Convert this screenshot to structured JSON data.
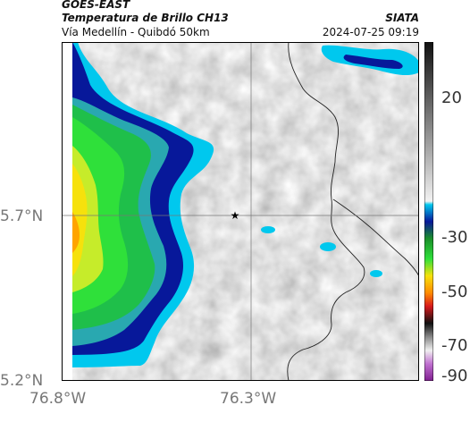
{
  "header": {
    "satellite": "GOES-EAST",
    "product": "Temperatura de Brillo CH13",
    "region": "Vía Medellín - Quibdó 50km",
    "source": "SIATA",
    "datetime": "2024-07-25 09:19"
  },
  "map": {
    "lat_labels": [
      "5.7°N",
      "5.2°N"
    ],
    "lon_labels": [
      "76.8°W",
      "76.3°W"
    ],
    "marker": "star-marker"
  },
  "colorbar": {
    "ticks": [
      "20",
      "-30",
      "-50",
      "-70",
      "-90"
    ],
    "palette": {
      "warm_gray": "#d8d8d8",
      "cyan": "#00bfe8",
      "navy": "#0b1a82",
      "green": "#2ecc40",
      "yellow": "#ffe600",
      "orange": "#ff8c00",
      "red": "#d7191c",
      "black": "#111111",
      "magenta": "#b040c0"
    }
  }
}
